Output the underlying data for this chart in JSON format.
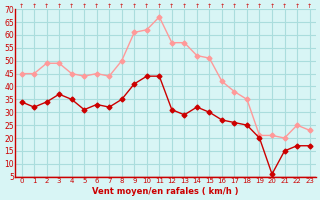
{
  "x": [
    0,
    1,
    2,
    3,
    4,
    5,
    6,
    7,
    8,
    9,
    10,
    11,
    12,
    13,
    14,
    15,
    16,
    17,
    18,
    19,
    20,
    21,
    22,
    23
  ],
  "wind_avg": [
    34,
    32,
    34,
    37,
    35,
    31,
    33,
    32,
    35,
    41,
    44,
    44,
    31,
    29,
    32,
    30,
    27,
    26,
    25,
    20,
    6,
    15,
    17,
    17
  ],
  "wind_gust": [
    45,
    45,
    49,
    49,
    45,
    44,
    45,
    44,
    50,
    61,
    62,
    67,
    57,
    57,
    52,
    51,
    42,
    38,
    35,
    21,
    21,
    20,
    25,
    23
  ],
  "ylim": [
    5,
    70
  ],
  "yticks": [
    5,
    10,
    15,
    20,
    25,
    30,
    35,
    40,
    45,
    50,
    55,
    60,
    65,
    70
  ],
  "bg_color": "#d8f5f5",
  "grid_color": "#aadddd",
  "avg_color": "#cc0000",
  "gust_color": "#ff9999",
  "xlabel": "Vent moyen/en rafales ( km/h )",
  "xlabel_color": "#cc0000",
  "tick_color": "#cc0000",
  "marker": "D",
  "marker_size": 2.5
}
